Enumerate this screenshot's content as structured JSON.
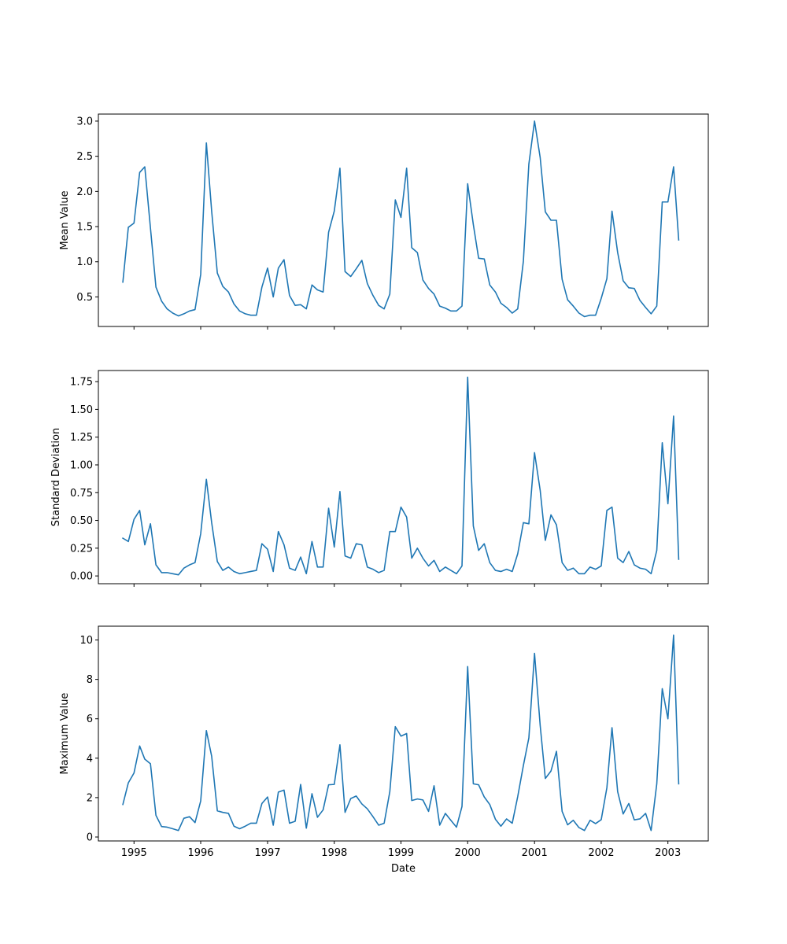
{
  "chart_data": [
    {
      "type": "line",
      "title": "",
      "xlabel": "",
      "ylabel": "Mean Value",
      "xlim": [
        "1994-06-20",
        "2003-08-10"
      ],
      "ylim": [
        0.08,
        3.1
      ],
      "yticks": [
        0.5,
        1.0,
        1.5,
        2.0,
        2.5,
        3.0
      ],
      "ytick_labels": [
        "0.5",
        "1.0",
        "1.5",
        "2.0",
        "2.5",
        "3.0"
      ],
      "xticks": [
        "1995-01-01",
        "1996-01-01",
        "1997-01-01",
        "1998-01-01",
        "1999-01-01",
        "2000-01-01",
        "2001-01-01",
        "2002-01-01",
        "2003-01-01"
      ],
      "xtick_labels": [],
      "grid": false,
      "color": "#1f77b4",
      "series": [
        {
          "x": [
            "1994-11",
            "1994-12",
            "1995-01",
            "1995-02",
            "1995-03",
            "1995-04",
            "1995-05",
            "1995-06",
            "1995-07",
            "1995-08",
            "1995-09",
            "1995-10",
            "1995-11",
            "1995-12",
            "1996-01",
            "1996-02",
            "1996-03",
            "1996-04",
            "1996-05",
            "1996-06",
            "1996-07",
            "1996-08",
            "1996-09",
            "1996-10",
            "1996-11",
            "1996-12",
            "1997-01",
            "1997-02",
            "1997-03",
            "1997-04",
            "1997-05",
            "1997-06",
            "1997-07",
            "1997-08",
            "1997-09",
            "1997-10",
            "1997-11",
            "1997-12",
            "1998-01",
            "1998-02",
            "1998-03",
            "1998-04",
            "1998-05",
            "1998-06",
            "1998-07",
            "1998-08",
            "1998-09",
            "1998-10",
            "1998-11",
            "1998-12",
            "1999-01",
            "1999-02",
            "1999-03",
            "1999-04",
            "1999-05",
            "1999-06",
            "1999-07",
            "1999-08",
            "1999-09",
            "1999-10",
            "1999-11",
            "1999-12",
            "2000-01",
            "2000-02",
            "2000-03",
            "2000-04",
            "2000-05",
            "2000-06",
            "2000-07",
            "2000-08",
            "2000-09",
            "2000-10",
            "2000-11",
            "2000-12",
            "2001-01",
            "2001-02",
            "2001-03",
            "2001-04",
            "2001-05",
            "2001-06",
            "2001-07",
            "2001-08",
            "2001-09",
            "2001-10",
            "2001-11",
            "2001-12",
            "2002-01",
            "2002-02",
            "2002-03",
            "2002-04",
            "2002-05",
            "2002-06",
            "2002-07",
            "2002-08",
            "2002-09",
            "2002-10",
            "2002-11",
            "2002-12",
            "2003-01",
            "2003-02",
            "2003-03"
          ],
          "values": [
            0.71,
            1.49,
            1.55,
            2.27,
            2.35,
            1.48,
            0.64,
            0.44,
            0.33,
            0.27,
            0.23,
            0.26,
            0.3,
            0.32,
            0.82,
            2.69,
            1.72,
            0.84,
            0.65,
            0.57,
            0.4,
            0.3,
            0.26,
            0.24,
            0.24,
            0.64,
            0.91,
            0.5,
            0.91,
            1.03,
            0.52,
            0.38,
            0.39,
            0.33,
            0.67,
            0.6,
            0.57,
            1.42,
            1.72,
            2.33,
            0.86,
            0.79,
            0.9,
            1.02,
            0.69,
            0.52,
            0.38,
            0.33,
            0.54,
            1.88,
            1.63,
            2.33,
            1.2,
            1.13,
            0.74,
            0.62,
            0.54,
            0.37,
            0.34,
            0.3,
            0.3,
            0.37,
            2.11,
            1.53,
            1.05,
            1.04,
            0.67,
            0.57,
            0.41,
            0.35,
            0.27,
            0.33,
            1.01,
            2.39,
            3.0,
            2.48,
            1.71,
            1.59,
            1.59,
            0.75,
            0.46,
            0.37,
            0.27,
            0.22,
            0.24,
            0.24,
            0.48,
            0.76,
            1.72,
            1.13,
            0.73,
            0.63,
            0.62,
            0.45,
            0.35,
            0.26,
            0.37,
            1.85,
            1.85,
            2.35,
            1.31
          ]
        }
      ]
    },
    {
      "type": "line",
      "title": "",
      "xlabel": "",
      "ylabel": "Standard Deviation",
      "xlim": [
        "1994-06-20",
        "2003-08-10"
      ],
      "ylim": [
        -0.07,
        1.85
      ],
      "yticks": [
        0.0,
        0.25,
        0.5,
        0.75,
        1.0,
        1.25,
        1.5,
        1.75
      ],
      "ytick_labels": [
        "0.00",
        "0.25",
        "0.50",
        "0.75",
        "1.00",
        "1.25",
        "1.50",
        "1.75"
      ],
      "xticks": [
        "1995-01-01",
        "1996-01-01",
        "1997-01-01",
        "1998-01-01",
        "1999-01-01",
        "2000-01-01",
        "2001-01-01",
        "2002-01-01",
        "2003-01-01"
      ],
      "xtick_labels": [],
      "grid": false,
      "color": "#1f77b4",
      "series": [
        {
          "x": [
            "1994-11",
            "1994-12",
            "1995-01",
            "1995-02",
            "1995-03",
            "1995-04",
            "1995-05",
            "1995-06",
            "1995-07",
            "1995-08",
            "1995-09",
            "1995-10",
            "1995-11",
            "1995-12",
            "1996-01",
            "1996-02",
            "1996-03",
            "1996-04",
            "1996-05",
            "1996-06",
            "1996-07",
            "1996-08",
            "1996-09",
            "1996-10",
            "1996-11",
            "1996-12",
            "1997-01",
            "1997-02",
            "1997-03",
            "1997-04",
            "1997-05",
            "1997-06",
            "1997-07",
            "1997-08",
            "1997-09",
            "1997-10",
            "1997-11",
            "1997-12",
            "1998-01",
            "1998-02",
            "1998-03",
            "1998-04",
            "1998-05",
            "1998-06",
            "1998-07",
            "1998-08",
            "1998-09",
            "1998-10",
            "1998-11",
            "1998-12",
            "1999-01",
            "1999-02",
            "1999-03",
            "1999-04",
            "1999-05",
            "1999-06",
            "1999-07",
            "1999-08",
            "1999-09",
            "1999-10",
            "1999-11",
            "1999-12",
            "2000-01",
            "2000-02",
            "2000-03",
            "2000-04",
            "2000-05",
            "2000-06",
            "2000-07",
            "2000-08",
            "2000-09",
            "2000-10",
            "2000-11",
            "2000-12",
            "2001-01",
            "2001-02",
            "2001-03",
            "2001-04",
            "2001-05",
            "2001-06",
            "2001-07",
            "2001-08",
            "2001-09",
            "2001-10",
            "2001-11",
            "2001-12",
            "2002-01",
            "2002-02",
            "2002-03",
            "2002-04",
            "2002-05",
            "2002-06",
            "2002-07",
            "2002-08",
            "2002-09",
            "2002-10",
            "2002-11",
            "2002-12",
            "2003-01",
            "2003-02",
            "2003-03"
          ],
          "values": [
            0.34,
            0.31,
            0.51,
            0.59,
            0.28,
            0.47,
            0.1,
            0.03,
            0.03,
            0.02,
            0.01,
            0.07,
            0.1,
            0.12,
            0.38,
            0.87,
            0.48,
            0.13,
            0.05,
            0.08,
            0.04,
            0.02,
            0.03,
            0.04,
            0.05,
            0.29,
            0.24,
            0.04,
            0.4,
            0.28,
            0.07,
            0.05,
            0.17,
            0.02,
            0.31,
            0.08,
            0.08,
            0.61,
            0.26,
            0.76,
            0.18,
            0.16,
            0.29,
            0.28,
            0.08,
            0.06,
            0.03,
            0.05,
            0.4,
            0.4,
            0.62,
            0.53,
            0.16,
            0.25,
            0.16,
            0.09,
            0.14,
            0.04,
            0.08,
            0.05,
            0.02,
            0.09,
            1.79,
            0.45,
            0.23,
            0.29,
            0.12,
            0.05,
            0.04,
            0.06,
            0.04,
            0.2,
            0.48,
            0.47,
            1.11,
            0.77,
            0.32,
            0.55,
            0.46,
            0.12,
            0.05,
            0.07,
            0.02,
            0.02,
            0.08,
            0.06,
            0.09,
            0.59,
            0.62,
            0.16,
            0.12,
            0.22,
            0.1,
            0.07,
            0.06,
            0.02,
            0.23,
            1.2,
            0.65,
            1.44,
            0.15
          ]
        }
      ]
    },
    {
      "type": "line",
      "title": "",
      "xlabel": "Date",
      "ylabel": "Maximum Value",
      "xlim": [
        "1994-06-20",
        "2003-08-10"
      ],
      "ylim": [
        -0.2,
        10.7
      ],
      "yticks": [
        0,
        2,
        4,
        6,
        8,
        10
      ],
      "ytick_labels": [
        "0",
        "2",
        "4",
        "6",
        "8",
        "10"
      ],
      "xticks": [
        "1995-01-01",
        "1996-01-01",
        "1997-01-01",
        "1998-01-01",
        "1999-01-01",
        "2000-01-01",
        "2001-01-01",
        "2002-01-01",
        "2003-01-01"
      ],
      "xtick_labels": [
        "1995",
        "1996",
        "1997",
        "1998",
        "1999",
        "2000",
        "2001",
        "2002",
        "2003"
      ],
      "grid": false,
      "color": "#1f77b4",
      "series": [
        {
          "x": [
            "1994-11",
            "1994-12",
            "1995-01",
            "1995-02",
            "1995-03",
            "1995-04",
            "1995-05",
            "1995-06",
            "1995-07",
            "1995-08",
            "1995-09",
            "1995-10",
            "1995-11",
            "1995-12",
            "1996-01",
            "1996-02",
            "1996-03",
            "1996-04",
            "1996-05",
            "1996-06",
            "1996-07",
            "1996-08",
            "1996-09",
            "1996-10",
            "1996-11",
            "1996-12",
            "1997-01",
            "1997-02",
            "1997-03",
            "1997-04",
            "1997-05",
            "1997-06",
            "1997-07",
            "1997-08",
            "1997-09",
            "1997-10",
            "1997-11",
            "1997-12",
            "1998-01",
            "1998-02",
            "1998-03",
            "1998-04",
            "1998-05",
            "1998-06",
            "1998-07",
            "1998-08",
            "1998-09",
            "1998-10",
            "1998-11",
            "1998-12",
            "1999-01",
            "1999-02",
            "1999-03",
            "1999-04",
            "1999-05",
            "1999-06",
            "1999-07",
            "1999-08",
            "1999-09",
            "1999-10",
            "1999-11",
            "1999-12",
            "2000-01",
            "2000-02",
            "2000-03",
            "2000-04",
            "2000-05",
            "2000-06",
            "2000-07",
            "2000-08",
            "2000-09",
            "2000-10",
            "2000-11",
            "2000-12",
            "2001-01",
            "2001-02",
            "2001-03",
            "2001-04",
            "2001-05",
            "2001-06",
            "2001-07",
            "2001-08",
            "2001-09",
            "2001-10",
            "2001-11",
            "2001-12",
            "2002-01",
            "2002-02",
            "2002-03",
            "2002-04",
            "2002-05",
            "2002-06",
            "2002-07",
            "2002-08",
            "2002-09",
            "2002-10",
            "2002-11",
            "2002-12",
            "2003-01",
            "2003-02",
            "2003-03"
          ],
          "values": [
            1.65,
            2.75,
            3.25,
            4.62,
            3.95,
            3.72,
            1.1,
            0.53,
            0.5,
            0.42,
            0.33,
            0.95,
            1.03,
            0.73,
            1.83,
            5.4,
            4.1,
            1.33,
            1.25,
            1.2,
            0.55,
            0.42,
            0.55,
            0.7,
            0.7,
            1.7,
            2.03,
            0.6,
            2.28,
            2.38,
            0.7,
            0.8,
            2.67,
            0.45,
            2.2,
            1.0,
            1.38,
            2.65,
            2.67,
            4.68,
            1.25,
            1.95,
            2.08,
            1.68,
            1.43,
            1.03,
            0.6,
            0.7,
            2.3,
            5.6,
            5.12,
            5.25,
            1.85,
            1.93,
            1.88,
            1.3,
            2.6,
            0.6,
            1.2,
            0.85,
            0.5,
            1.55,
            8.65,
            2.7,
            2.65,
            2.03,
            1.65,
            0.9,
            0.55,
            0.92,
            0.7,
            2.05,
            3.63,
            5.03,
            9.32,
            5.65,
            2.97,
            3.35,
            4.35,
            1.3,
            0.62,
            0.85,
            0.48,
            0.33,
            0.85,
            0.68,
            0.88,
            2.5,
            5.55,
            2.3,
            1.17,
            1.7,
            0.87,
            0.92,
            1.2,
            0.33,
            2.7,
            7.53,
            6.0,
            10.25,
            2.7
          ]
        }
      ]
    }
  ]
}
